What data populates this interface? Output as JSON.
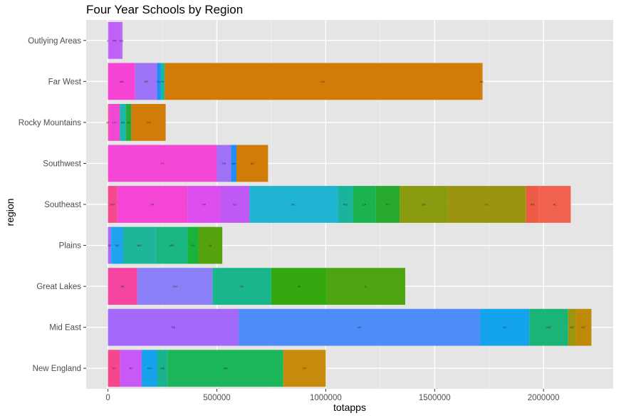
{
  "chart_data": {
    "type": "bar",
    "orientation": "horizontal",
    "stacked": true,
    "title": "Four Year Schools by Region",
    "xlabel": "totapps",
    "ylabel": "region",
    "xlim": [
      -100000,
      2320000
    ],
    "xticks": [
      0,
      500000,
      1000000,
      1500000,
      2000000
    ],
    "xtick_labels": [
      "0",
      "500000",
      "1000000",
      "1500000",
      "2000000"
    ],
    "grid": true,
    "legend": "none",
    "background": "#e5e5e5",
    "categories": [
      "Outlying Areas",
      "Far West",
      "Rocky Mountains",
      "Southwest",
      "Southeast",
      "Plains",
      "Great Lakes",
      "Mid East",
      "New England"
    ],
    "bars": [
      {
        "region": "Outlying Areas",
        "segments": [
          {
            "label": "VI",
            "value": 2000,
            "color": "#b86ff5"
          },
          {
            "label": "PR",
            "value": 55000,
            "color": "#c15ff7"
          },
          {
            "label": "GU",
            "value": 10000,
            "color": "#b86ff5"
          }
        ]
      },
      {
        "region": "Far West",
        "segments": [
          {
            "label": "WA",
            "value": 125000,
            "color": "#f543d4"
          },
          {
            "label": "OR",
            "value": 100000,
            "color": "#9d73f7"
          },
          {
            "label": "NV",
            "value": 18000,
            "color": "#1e8ff5"
          },
          {
            "label": "HI",
            "value": 17000,
            "color": "#18b8a8"
          },
          {
            "label": "CA",
            "value": 1453000,
            "color": "#d17c08"
          },
          {
            "label": "AK",
            "value": 7000,
            "color": "#d17c08"
          }
        ]
      },
      {
        "region": "Rocky Mountains",
        "segments": [
          {
            "label": "WY",
            "value": 5000,
            "color": "#f0529a"
          },
          {
            "label": "UT",
            "value": 50000,
            "color": "#f047d5"
          },
          {
            "label": "MT",
            "value": 27000,
            "color": "#19b8ac"
          },
          {
            "label": "ID",
            "value": 26000,
            "color": "#2aa83a"
          },
          {
            "label": "CO",
            "value": 157000,
            "color": "#d17c08"
          }
        ]
      },
      {
        "region": "Southwest",
        "segments": [
          {
            "label": "TX",
            "value": 500000,
            "color": "#f447d6"
          },
          {
            "label": "OK",
            "value": 65000,
            "color": "#9e71f7"
          },
          {
            "label": "NM",
            "value": 25000,
            "color": "#1f8ff6"
          },
          {
            "label": "AZ",
            "value": 145000,
            "color": "#d17c08"
          }
        ]
      },
      {
        "region": "Southeast",
        "segments": [
          {
            "label": "WV",
            "value": 43000,
            "color": "#f5488d"
          },
          {
            "label": "VA",
            "value": 322000,
            "color": "#f545d5"
          },
          {
            "label": "TN",
            "value": 150000,
            "color": "#dc4ef0"
          },
          {
            "label": "SC",
            "value": 135000,
            "color": "#c058f5"
          },
          {
            "label": "NC",
            "value": 405000,
            "color": "#1eb4d2"
          },
          {
            "label": "MS",
            "value": 70000,
            "color": "#19b39e"
          },
          {
            "label": "LA",
            "value": 105000,
            "color": "#1ab34f"
          },
          {
            "label": "KY",
            "value": 110000,
            "color": "#27aa2d"
          },
          {
            "label": "GA",
            "value": 220000,
            "color": "#8b9b0f"
          },
          {
            "label": "FL",
            "value": 360000,
            "color": "#9b9411"
          },
          {
            "label": "AR",
            "value": 58000,
            "color": "#ee5b45"
          },
          {
            "label": "AL",
            "value": 147000,
            "color": "#f0624d"
          }
        ]
      },
      {
        "region": "Plains",
        "segments": [
          {
            "label": "SD",
            "value": 15000,
            "color": "#a36df5"
          },
          {
            "label": "NE",
            "value": 55000,
            "color": "#1fa3ee"
          },
          {
            "label": "MO",
            "value": 150000,
            "color": "#1eb59a"
          },
          {
            "label": "MN",
            "value": 145000,
            "color": "#1ab684"
          },
          {
            "label": "KS",
            "value": 50000,
            "color": "#1ab33a"
          },
          {
            "label": "IA",
            "value": 110000,
            "color": "#55a10e"
          }
        ]
      },
      {
        "region": "Great Lakes",
        "segments": [
          {
            "label": "WI",
            "value": 135000,
            "color": "#f545a0"
          },
          {
            "label": "OH",
            "value": 345000,
            "color": "#8b80f8"
          },
          {
            "label": "MI",
            "value": 270000,
            "color": "#1ab68b"
          },
          {
            "label": "IN",
            "value": 255000,
            "color": "#33a80f"
          },
          {
            "label": "IL",
            "value": 360000,
            "color": "#4ea512"
          }
        ]
      },
      {
        "region": "Mid East",
        "segments": [
          {
            "label": "PA",
            "value": 600000,
            "color": "#a469fa"
          },
          {
            "label": "NY",
            "value": 1110000,
            "color": "#4d8df9"
          },
          {
            "label": "NJ",
            "value": 225000,
            "color": "#14a4ee"
          },
          {
            "label": "MD",
            "value": 178000,
            "color": "#1ab576"
          },
          {
            "label": "DE",
            "value": 35000,
            "color": "#9b960e"
          },
          {
            "label": "DC",
            "value": 72000,
            "color": "#c08a09"
          }
        ]
      },
      {
        "region": "New England",
        "segments": [
          {
            "label": "VT",
            "value": 55000,
            "color": "#f5468e"
          },
          {
            "label": "RI",
            "value": 100000,
            "color": "#c859f7"
          },
          {
            "label": "NH",
            "value": 72000,
            "color": "#17a2ee"
          },
          {
            "label": "ME",
            "value": 48000,
            "color": "#1ab38b"
          },
          {
            "label": "MA",
            "value": 530000,
            "color": "#1bb55a"
          },
          {
            "label": "CT",
            "value": 195000,
            "color": "#c88a0a"
          }
        ]
      }
    ]
  }
}
